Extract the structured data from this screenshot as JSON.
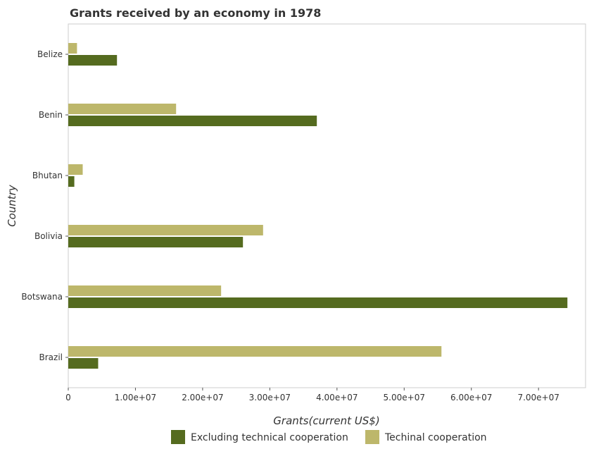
{
  "chart_data": {
    "type": "bar",
    "orientation": "horizontal",
    "title": "Grants received by an economy in 1978",
    "xlabel": "Grants(current US$)",
    "ylabel": "Country",
    "categories": [
      "Belize",
      "Benin",
      "Bhutan",
      "Bolivia",
      "Botswana",
      "Brazil"
    ],
    "series": [
      {
        "name": "Excluding technical cooperation",
        "color": "#556b1f",
        "values": [
          7250000,
          37000000,
          900000,
          26000000,
          74300000,
          4450000
        ]
      },
      {
        "name": "Techinal cooperation",
        "color": "#bdb76b",
        "values": [
          1300000,
          16050000,
          2150000,
          29000000,
          22750000,
          55550000
        ]
      }
    ],
    "xlim": [
      0,
      77000000
    ],
    "xticks": [
      0,
      10000000,
      20000000,
      30000000,
      40000000,
      50000000,
      60000000,
      70000000
    ],
    "xtick_labels": [
      "0",
      "1.00e+07",
      "2.00e+07",
      "3.00e+07",
      "4.00e+07",
      "5.00e+07",
      "6.00e+07",
      "7.00e+07"
    ],
    "legend_position": "bottom-center",
    "grid": false
  }
}
